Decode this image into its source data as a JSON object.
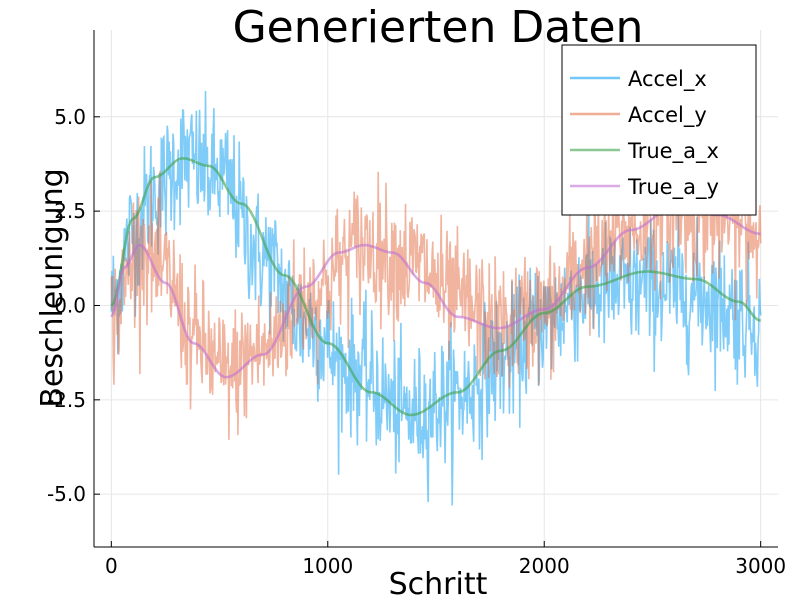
{
  "chart_data": {
    "type": "line",
    "title": "Generierten Daten",
    "xlabel": "Schritt",
    "ylabel": "Beschleunigung",
    "xlim": [
      -80,
      3080
    ],
    "ylim": [
      -6.4,
      7.3
    ],
    "xticks": [
      0,
      1000,
      2000,
      3000
    ],
    "xtick_labels": [
      "0",
      "1000",
      "2000",
      "3000"
    ],
    "yticks": [
      -5.0,
      -2.5,
      0.0,
      2.5,
      5.0
    ],
    "ytick_labels": [
      "-5.0",
      "-2.5",
      "0.0",
      "2.5",
      "5.0"
    ],
    "grid": true,
    "legend_position": "top-right",
    "series": [
      {
        "name": "Accel_x",
        "color": "#0099f2",
        "noisy": true,
        "x": [
          0,
          100,
          200,
          330,
          500,
          700,
          900,
          1100,
          1385,
          1600,
          1800,
          2000,
          2200,
          2475,
          2700,
          3000
        ],
        "values": [
          0.1,
          1.9,
          3.0,
          3.9,
          3.4,
          1.3,
          -0.5,
          -1.7,
          -2.9,
          -2.4,
          -1.5,
          -0.4,
          0.4,
          0.5,
          0.3,
          -0.4
        ]
      },
      {
        "name": "Accel_y",
        "color": "#e26a40",
        "noisy": true,
        "x": [
          0,
          130,
          250,
          380,
          530,
          700,
          900,
          1170,
          1400,
          1600,
          1790,
          2000,
          2200,
          2400,
          2600,
          2800,
          3000
        ],
        "values": [
          -0.4,
          1.6,
          0.8,
          -0.9,
          -1.8,
          -1.2,
          0.2,
          1.6,
          1.1,
          0.1,
          -0.6,
          -0.2,
          1.1,
          2.0,
          2.5,
          2.3,
          1.9
        ]
      },
      {
        "name": "True_a_x",
        "color": "#3da44d",
        "noisy": false,
        "x": [
          0,
          100,
          200,
          330,
          450,
          600,
          800,
          1000,
          1200,
          1385,
          1600,
          1800,
          2000,
          2200,
          2475,
          2700,
          2900,
          3000
        ],
        "values": [
          0.0,
          2.3,
          3.4,
          3.9,
          3.7,
          2.7,
          0.8,
          -1.0,
          -2.3,
          -2.9,
          -2.3,
          -1.2,
          -0.2,
          0.5,
          0.9,
          0.7,
          0.1,
          -0.4
        ]
      },
      {
        "name": "True_a_y",
        "color": "#c271d2",
        "noisy": false,
        "x": [
          0,
          60,
          130,
          250,
          380,
          530,
          700,
          900,
          1050,
          1170,
          1300,
          1450,
          1600,
          1790,
          2000,
          2200,
          2400,
          2600,
          2800,
          3000
        ],
        "values": [
          -0.3,
          1.0,
          1.6,
          0.6,
          -1.0,
          -1.9,
          -1.3,
          0.5,
          1.4,
          1.6,
          1.4,
          0.6,
          -0.3,
          -0.6,
          -0.1,
          1.0,
          2.0,
          2.6,
          2.4,
          1.9
        ]
      }
    ]
  }
}
